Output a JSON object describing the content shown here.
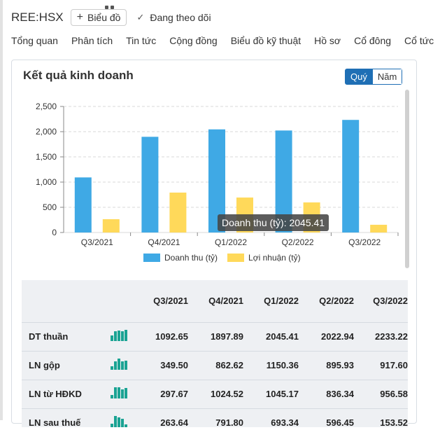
{
  "header": {
    "ticker": "REE:HSX",
    "chart_button_label": "Biểu đồ",
    "follow_label": "Đang theo dõi"
  },
  "nav": {
    "items": [
      "Tổng quan",
      "Phân tích",
      "Tin tức",
      "Cộng đồng",
      "Biểu đồ kỹ thuật",
      "Hồ sơ",
      "Cổ đông",
      "Cổ tức"
    ]
  },
  "card": {
    "title": "Kết quả kinh doanh",
    "toggle": {
      "quarter_label": "Quý",
      "year_label": "Năm",
      "selected": "Quý"
    }
  },
  "chart_data": {
    "type": "bar",
    "categories": [
      "Q3/2021",
      "Q4/2021",
      "Q1/2022",
      "Q2/2022",
      "Q3/2022"
    ],
    "series": [
      {
        "name": "Doanh thu (tỷ)",
        "values": [
          1092.65,
          1897.89,
          2045.41,
          2022.94,
          2233.22
        ],
        "color": "#3fa9e5"
      },
      {
        "name": "Lợi nhuận (tỷ)",
        "values": [
          263.64,
          791.8,
          693.34,
          596.45,
          153.52
        ],
        "color": "#ffd95a"
      }
    ],
    "yticks": [
      "0",
      "500",
      "1,000",
      "1,500",
      "2,000",
      "2,500"
    ],
    "ylim": [
      0,
      2500
    ],
    "grid": "horizontal dashed",
    "legend": "bottom-center",
    "tooltip": "Doanh thu (tỷ): 2045.41"
  },
  "table": {
    "headers": [
      "Q3/2021",
      "Q4/2021",
      "Q1/2022",
      "Q2/2022",
      "Q3/2022"
    ],
    "rows": [
      {
        "label": "DT thuần",
        "values": [
          "1092.65",
          "1897.89",
          "2045.41",
          "2022.94",
          "2233.22"
        ],
        "spark": [
          1092.65,
          1897.89,
          2045.41,
          2022.94,
          2233.22
        ]
      },
      {
        "label": "LN gộp",
        "values": [
          "349.50",
          "862.62",
          "1150.36",
          "895.93",
          "917.60"
        ],
        "spark": [
          349.5,
          862.62,
          1150.36,
          895.93,
          917.6
        ]
      },
      {
        "label": "LN từ HĐKD",
        "values": [
          "297.67",
          "1024.52",
          "1045.17",
          "836.34",
          "956.58"
        ],
        "spark": [
          297.67,
          1024.52,
          1045.17,
          836.34,
          956.58
        ]
      },
      {
        "label": "LN sau thuế",
        "values": [
          "263.64",
          "791.80",
          "693.34",
          "596.45",
          "153.52"
        ],
        "spark": [
          263.64,
          791.8,
          693.34,
          596.45,
          153.52
        ]
      }
    ]
  },
  "colors": {
    "accent": "#1f6fb5",
    "spark": "#1aa393"
  }
}
